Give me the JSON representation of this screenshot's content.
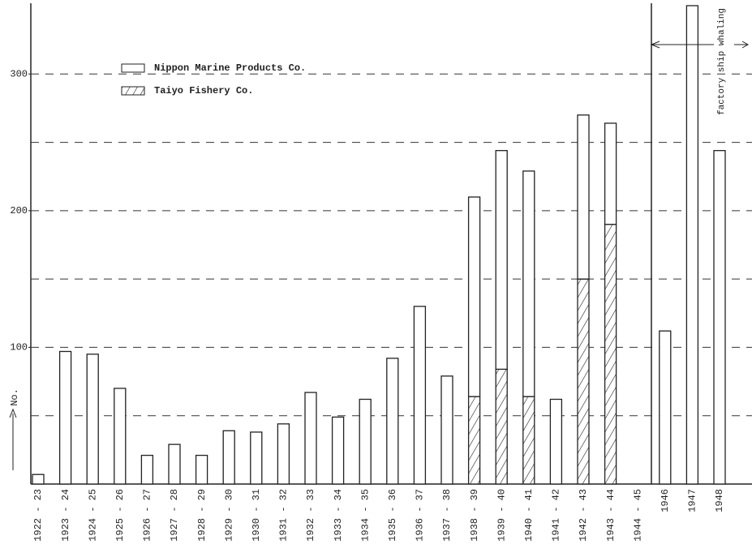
{
  "chart_data": {
    "type": "bar",
    "stacked": true,
    "categories": [
      "1922 - 23",
      "1923 - 24",
      "1924 - 25",
      "1925 - 26",
      "1926 - 27",
      "1927 - 28",
      "1928 - 29",
      "1929 - 30",
      "1930 - 31",
      "1931 - 32",
      "1932 - 33",
      "1933 - 34",
      "1934 - 35",
      "1935 - 36",
      "1936 - 37",
      "1937 - 38",
      "1938 - 39",
      "1939 - 40",
      "1940 - 41",
      "1941 - 42",
      "1942 - 43",
      "1943 - 44",
      "1944 - 45",
      "1946",
      "1947",
      "1948"
    ],
    "series": [
      {
        "name": "Taiyo Fishery Co.",
        "color": "#ffffff",
        "fill": "hatch",
        "values": [
          null,
          null,
          null,
          null,
          null,
          null,
          null,
          null,
          null,
          null,
          null,
          null,
          null,
          null,
          null,
          null,
          64,
          84,
          64,
          null,
          150,
          190,
          null,
          null,
          null,
          null
        ]
      },
      {
        "name": "Nippon Marine Products Co.",
        "color": "#ffffff",
        "fill": "solid",
        "values": [
          7,
          97,
          95,
          70,
          21,
          29,
          21,
          39,
          38,
          44,
          67,
          49,
          62,
          92,
          130,
          79,
          146,
          160,
          165,
          62,
          120,
          74,
          null,
          112,
          350,
          244
        ]
      }
    ],
    "y_label": "No.",
    "annotation": "factory ship whaling",
    "ylim": [
      0,
      350
    ],
    "yticks": [
      100,
      200,
      300
    ],
    "gridlines": [
      50,
      100,
      150,
      200,
      250,
      300
    ],
    "grid": true
  }
}
